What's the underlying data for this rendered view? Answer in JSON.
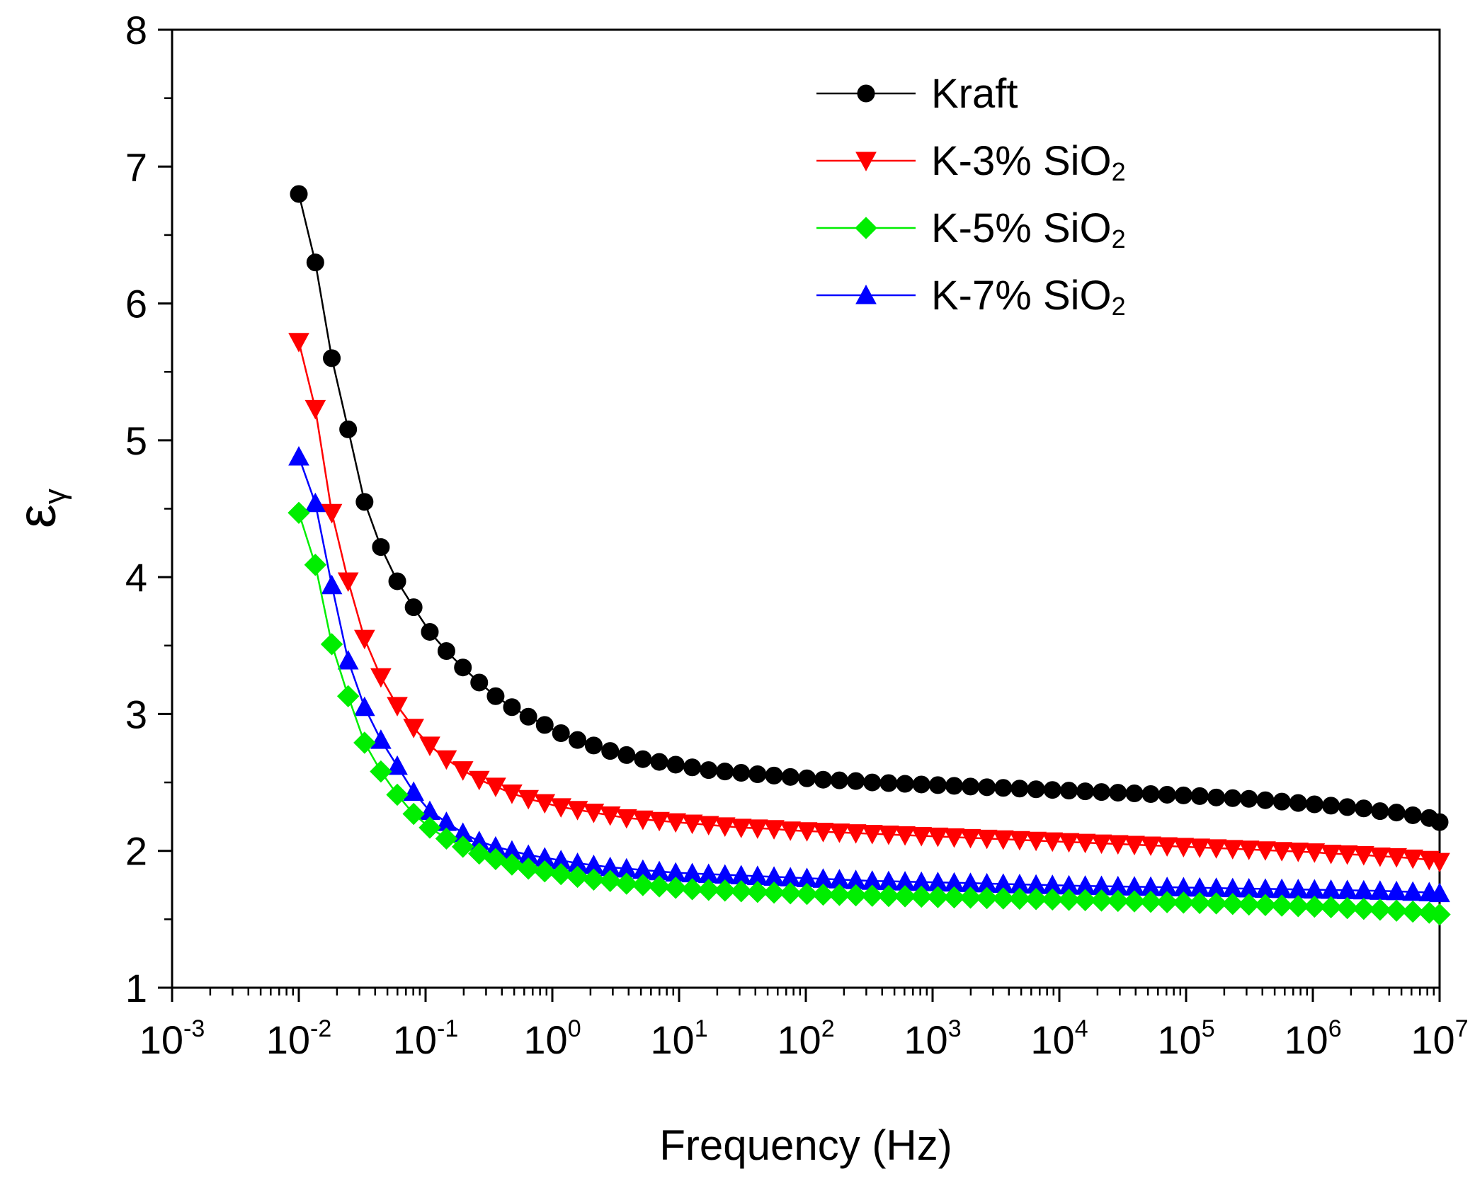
{
  "chart_data": {
    "type": "line",
    "xlabel": "Frequency (Hz)",
    "ylabel": "ε",
    "ylabel_subscript": "γ",
    "x_scale": "log",
    "xlim": [
      0.001,
      10000000
    ],
    "ylim": [
      1,
      8
    ],
    "x_ticks": [
      {
        "base": "10",
        "exp": "-3",
        "value": 0.001
      },
      {
        "base": "10",
        "exp": "-2",
        "value": 0.01
      },
      {
        "base": "10",
        "exp": "-1",
        "value": 0.1
      },
      {
        "base": "10",
        "exp": "0",
        "value": 1
      },
      {
        "base": "10",
        "exp": "1",
        "value": 10
      },
      {
        "base": "10",
        "exp": "2",
        "value": 100
      },
      {
        "base": "10",
        "exp": "3",
        "value": 1000
      },
      {
        "base": "10",
        "exp": "4",
        "value": 10000
      },
      {
        "base": "10",
        "exp": "5",
        "value": 100000
      },
      {
        "base": "10",
        "exp": "6",
        "value": 1000000
      },
      {
        "base": "10",
        "exp": "7",
        "value": 10000000
      }
    ],
    "y_ticks": [
      "1",
      "2",
      "3",
      "4",
      "5",
      "6",
      "7",
      "8"
    ],
    "grid": false,
    "legend_position": "top-right",
    "x": [
      0.01,
      0.0135,
      0.0182,
      0.0245,
      0.033,
      0.0444,
      0.0598,
      0.0805,
      0.108,
      0.146,
      0.197,
      0.265,
      0.357,
      0.48,
      0.647,
      0.871,
      1.17,
      1.58,
      2.12,
      2.86,
      3.85,
      5.18,
      6.98,
      9.4,
      12.7,
      17.1,
      23,
      30.9,
      41.6,
      56.1,
      75.5,
      102,
      137,
      184,
      248,
      334,
      450,
      606,
      816,
      1100,
      1480,
      1990,
      2680,
      3610,
      4860,
      6550,
      8820,
      11900,
      16000,
      21500,
      29000,
      39100,
      52600,
      70800,
      95400,
      128000,
      173000,
      233000,
      313000,
      422000,
      569000,
      766000,
      1030000,
      1390000,
      1870000,
      2520000,
      3390000,
      4570000,
      6150000,
      8280000,
      10000000
    ],
    "series": [
      {
        "name": "Kraft",
        "sub": "",
        "color": "#000000",
        "marker": "circle",
        "values": [
          6.8,
          6.3,
          5.6,
          5.08,
          4.55,
          4.22,
          3.97,
          3.78,
          3.6,
          3.46,
          3.34,
          3.23,
          3.13,
          3.05,
          2.98,
          2.92,
          2.86,
          2.81,
          2.77,
          2.73,
          2.7,
          2.67,
          2.65,
          2.63,
          2.61,
          2.59,
          2.58,
          2.57,
          2.56,
          2.55,
          2.54,
          2.53,
          2.52,
          2.515,
          2.51,
          2.5,
          2.495,
          2.49,
          2.485,
          2.48,
          2.475,
          2.47,
          2.465,
          2.46,
          2.455,
          2.45,
          2.445,
          2.44,
          2.435,
          2.43,
          2.425,
          2.42,
          2.415,
          2.41,
          2.405,
          2.4,
          2.39,
          2.385,
          2.38,
          2.37,
          2.36,
          2.35,
          2.34,
          2.33,
          2.32,
          2.31,
          2.29,
          2.28,
          2.26,
          2.24,
          2.21
        ]
      },
      {
        "name": "K-3% SiO",
        "sub": "2",
        "color": "#ff0000",
        "marker": "triangle-down",
        "values": [
          5.72,
          5.23,
          4.47,
          3.97,
          3.55,
          3.27,
          3.06,
          2.9,
          2.77,
          2.67,
          2.59,
          2.52,
          2.47,
          2.42,
          2.38,
          2.35,
          2.32,
          2.3,
          2.28,
          2.26,
          2.24,
          2.23,
          2.22,
          2.21,
          2.2,
          2.19,
          2.18,
          2.17,
          2.165,
          2.16,
          2.15,
          2.145,
          2.14,
          2.135,
          2.13,
          2.125,
          2.12,
          2.115,
          2.11,
          2.105,
          2.1,
          2.095,
          2.09,
          2.085,
          2.08,
          2.075,
          2.07,
          2.065,
          2.06,
          2.055,
          2.05,
          2.045,
          2.04,
          2.035,
          2.03,
          2.025,
          2.02,
          2.015,
          2.01,
          2.005,
          2.0,
          1.995,
          1.99,
          1.98,
          1.975,
          1.97,
          1.96,
          1.955,
          1.945,
          1.935,
          1.92
        ]
      },
      {
        "name": "K-5% SiO",
        "sub": "2",
        "color": "#00ee00",
        "marker": "diamond",
        "values": [
          4.47,
          4.09,
          3.51,
          3.13,
          2.79,
          2.58,
          2.41,
          2.27,
          2.17,
          2.09,
          2.03,
          1.98,
          1.94,
          1.9,
          1.87,
          1.85,
          1.83,
          1.81,
          1.79,
          1.78,
          1.76,
          1.75,
          1.74,
          1.73,
          1.72,
          1.715,
          1.71,
          1.705,
          1.7,
          1.695,
          1.69,
          1.685,
          1.68,
          1.678,
          1.675,
          1.672,
          1.67,
          1.668,
          1.665,
          1.662,
          1.66,
          1.658,
          1.655,
          1.652,
          1.65,
          1.648,
          1.645,
          1.642,
          1.64,
          1.637,
          1.634,
          1.631,
          1.628,
          1.625,
          1.622,
          1.619,
          1.616,
          1.612,
          1.608,
          1.604,
          1.6,
          1.596,
          1.592,
          1.588,
          1.582,
          1.576,
          1.57,
          1.563,
          1.556,
          1.548,
          1.535
        ]
      },
      {
        "name": "K-7% SiO",
        "sub": "2",
        "color": "#0000ff",
        "marker": "triangle-up",
        "values": [
          4.88,
          4.54,
          3.94,
          3.39,
          3.05,
          2.81,
          2.62,
          2.43,
          2.29,
          2.21,
          2.13,
          2.07,
          2.03,
          2.0,
          1.97,
          1.95,
          1.93,
          1.91,
          1.895,
          1.88,
          1.87,
          1.86,
          1.85,
          1.84,
          1.835,
          1.83,
          1.825,
          1.82,
          1.815,
          1.81,
          1.805,
          1.8,
          1.795,
          1.79,
          1.785,
          1.78,
          1.778,
          1.775,
          1.772,
          1.77,
          1.767,
          1.764,
          1.761,
          1.758,
          1.755,
          1.752,
          1.749,
          1.746,
          1.744,
          1.742,
          1.74,
          1.738,
          1.736,
          1.734,
          1.732,
          1.73,
          1.728,
          1.726,
          1.724,
          1.722,
          1.72,
          1.718,
          1.716,
          1.714,
          1.712,
          1.71,
          1.707,
          1.704,
          1.7,
          1.696,
          1.69
        ]
      }
    ]
  }
}
